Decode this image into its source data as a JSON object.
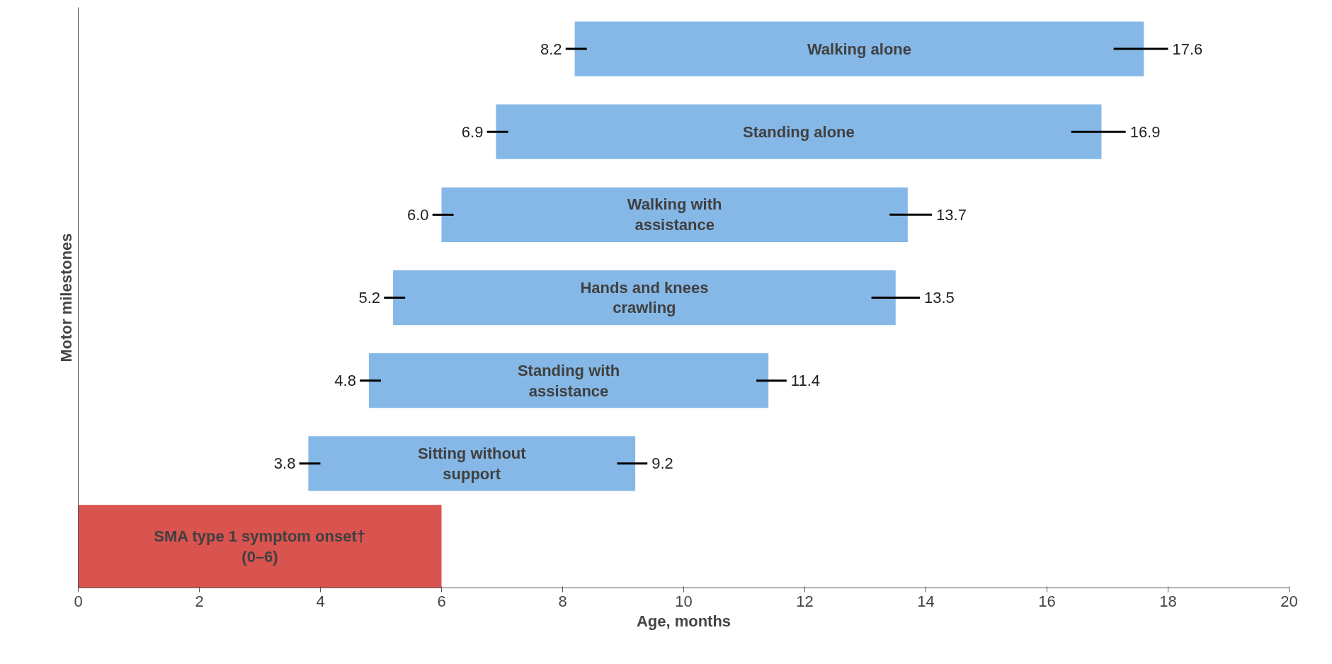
{
  "chart_data": {
    "type": "bar",
    "orientation": "horizontal",
    "xlabel": "Age, months",
    "ylabel": "Motor milestones",
    "categories": [
      "Walking alone",
      "Standing alone",
      "Walking with assistance",
      "Hands and knees crawling",
      "Standing with assistance",
      "Sitting without support",
      "SMA type 1 symptom onset† (0–6)"
    ],
    "base": [
      8.2,
      6.9,
      6.0,
      5.2,
      4.8,
      3.8,
      0
    ],
    "values": [
      9.4,
      10.0,
      7.7,
      8.3,
      6.6,
      5.4,
      6
    ],
    "colors": [
      "#85b8e6",
      "#85b8e6",
      "#85b8e6",
      "#85b8e6",
      "#85b8e6",
      "#85b8e6",
      "#d9534f"
    ],
    "errors": [
      [
        17.1,
        18.0
      ],
      [
        16.4,
        17.3
      ],
      [
        13.4,
        14.1
      ],
      [
        13.1,
        13.9
      ],
      [
        11.2,
        11.7
      ],
      [
        8.9,
        9.4
      ],
      null
    ],
    "value_labels": [
      "17.6",
      "16.9",
      "13.7",
      "13.5",
      "11.4",
      "9.2",
      null
    ],
    "annotations": [
      {
        "text": "8.2",
        "x": 8.2,
        "y": "Walking alone"
      },
      {
        "text": "6.9",
        "x": 6.9,
        "y": "Standing alone"
      },
      {
        "text": "6.0",
        "x": 6.0,
        "y": "Walking with assistance"
      },
      {
        "text": "5.2",
        "x": 5.2,
        "y": "Hands and knees crawling"
      },
      {
        "text": "4.8",
        "x": 4.8,
        "y": "Standing with assistance"
      },
      {
        "text": "3.8",
        "x": 3.8,
        "y": "Sitting without support"
      },
      "0"
    ],
    "xlim": [
      0,
      20
    ],
    "xticks": [
      0,
      2,
      4,
      6,
      8,
      10,
      12,
      14,
      16,
      18,
      20
    ],
    "tick_labels": "x",
    "grid": false
  }
}
